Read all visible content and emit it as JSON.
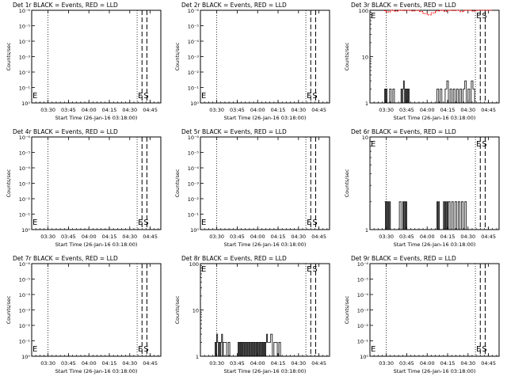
{
  "figure": {
    "time_ticks": [
      "03:30",
      "03:45",
      "04:00",
      "04:15",
      "04:30",
      "04:45"
    ],
    "xlabel": "Start Time (26-Jan-16 03:18:00)",
    "ylabel": "Counts/sec",
    "markers": {
      "E": "E",
      "S": "S"
    },
    "colors": {
      "events": "#000000",
      "lld": "#ff0000"
    }
  },
  "chart_data": [
    {
      "type": "line",
      "title": "Det 1r BLACK = Events, RED = LLD",
      "scale": "decade",
      "ytick_labels": [
        "10⁰",
        "10⁻¹",
        "10⁻²",
        "10⁻³",
        "10⁻⁴",
        "10⁻⁵",
        "10⁻⁶"
      ],
      "series": []
    },
    {
      "type": "line",
      "title": "Det 2r BLACK = Events, RED = LLD",
      "scale": "decade",
      "ytick_labels": [
        "10⁰",
        "10⁻¹",
        "10⁻²",
        "10⁻³",
        "10⁻⁴",
        "10⁻⁵",
        "10⁻⁶"
      ],
      "series": []
    },
    {
      "type": "line",
      "title": "Det 3r BLACK = Events, RED = LLD",
      "scale": "log",
      "ytick_labels": [
        "100",
        "10",
        "1"
      ],
      "series": [
        {
          "color": "#000000",
          "x": [
            3.47,
            3.48,
            3.49,
            3.5,
            3.51,
            3.52,
            3.54,
            3.56,
            3.58,
            3.6,
            3.62,
            3.64,
            3.66,
            3.68,
            3.69,
            3.7,
            3.71,
            3.72,
            3.73,
            3.74,
            3.75,
            3.76,
            3.77,
            3.78,
            3.8,
            3.82,
            3.84,
            3.86,
            3.88,
            3.9,
            3.92,
            3.94,
            3.96,
            3.98,
            4.0,
            4.02,
            4.04,
            4.06,
            4.08,
            4.1,
            4.12,
            4.14,
            4.16,
            4.18,
            4.2,
            4.22,
            4.24,
            4.26,
            4.28,
            4.3,
            4.32,
            4.34,
            4.36,
            4.38,
            4.4,
            4.42,
            4.44,
            4.46,
            4.48,
            4.5,
            4.52,
            4.54,
            4.56,
            4.58,
            4.6,
            4.62,
            4.64,
            4.66,
            4.68,
            4.7,
            4.72
          ],
          "y": [
            1,
            2,
            1,
            2,
            1,
            1,
            2,
            1,
            2,
            1,
            1,
            1,
            1,
            2,
            1,
            2,
            3,
            1,
            2,
            1,
            2,
            1,
            2,
            1,
            1,
            1,
            1,
            1,
            1,
            1,
            1,
            1,
            1,
            1,
            1,
            1,
            1,
            1,
            1,
            1,
            2,
            1,
            2,
            1,
            1,
            2,
            3,
            1,
            2,
            1,
            2,
            1,
            2,
            1,
            2,
            1,
            2,
            3,
            1,
            2,
            1,
            3,
            2,
            1,
            1,
            1,
            1,
            1,
            1,
            1,
            1
          ]
        },
        {
          "color": "#ff0000",
          "x": [
            3.47,
            3.5,
            3.55,
            3.6,
            3.65,
            3.7,
            3.75,
            3.8,
            3.85,
            3.9,
            3.95,
            4.0,
            4.05,
            4.1,
            4.15,
            4.2,
            4.25,
            4.3,
            4.35,
            4.4,
            4.45,
            4.5,
            4.55,
            4.6,
            4.65,
            4.7,
            4.75,
            4.8
          ],
          "y": [
            98,
            92,
            100,
            96,
            100,
            99,
            100,
            97,
            100,
            94,
            85,
            80,
            88,
            97,
            100,
            95,
            100,
            99,
            100,
            93,
            100,
            100,
            96,
            100,
            100,
            100,
            100,
            100
          ]
        }
      ]
    },
    {
      "type": "line",
      "title": "Det 4r BLACK = Events, RED = LLD",
      "scale": "decade",
      "ytick_labels": [
        "10⁰",
        "10⁻¹",
        "10⁻²",
        "10⁻³",
        "10⁻⁴",
        "10⁻⁵",
        "10⁻⁶"
      ],
      "series": []
    },
    {
      "type": "line",
      "title": "Det 5r BLACK = Events, RED = LLD",
      "scale": "decade",
      "ytick_labels": [
        "10⁰",
        "10⁻¹",
        "10⁻²",
        "10⁻³",
        "10⁻⁴",
        "10⁻⁵",
        "10⁻⁶"
      ],
      "series": []
    },
    {
      "type": "line",
      "title": "Det 6r BLACK = Events, RED = LLD",
      "scale": "log",
      "ytick_labels": [
        "10",
        "1"
      ],
      "series": [
        {
          "color": "#000000",
          "x": [
            3.48,
            3.49,
            3.5,
            3.51,
            3.52,
            3.53,
            3.54,
            3.55,
            3.56,
            3.58,
            3.6,
            3.62,
            3.64,
            3.66,
            3.68,
            3.7,
            3.71,
            3.72,
            3.73,
            3.74,
            3.75,
            3.76,
            3.78,
            3.8,
            3.82,
            3.84,
            3.86,
            3.88,
            3.9,
            3.92,
            3.94,
            3.96,
            3.98,
            4.0,
            4.02,
            4.04,
            4.06,
            4.08,
            4.1,
            4.12,
            4.13,
            4.14,
            4.15,
            4.16,
            4.18,
            4.2,
            4.21,
            4.22,
            4.23,
            4.24,
            4.25,
            4.26,
            4.28,
            4.3,
            4.32,
            4.34,
            4.36,
            4.38,
            4.4,
            4.42,
            4.44,
            4.46,
            4.48,
            4.5,
            4.52,
            4.54,
            4.56,
            4.58,
            4.6,
            4.62,
            4.64,
            4.66,
            4.68,
            4.7
          ],
          "y": [
            2,
            1,
            2,
            1,
            2,
            1,
            2,
            1,
            1,
            1,
            1,
            1,
            1,
            2,
            1,
            2,
            1,
            2,
            1,
            2,
            1,
            1,
            1,
            1,
            1,
            1,
            1,
            1,
            1,
            1,
            1,
            1,
            1,
            1,
            1,
            1,
            1,
            1,
            1,
            2,
            1,
            2,
            1,
            1,
            1,
            2,
            1,
            2,
            1,
            2,
            1,
            2,
            1,
            2,
            1,
            2,
            1,
            2,
            1,
            2,
            1,
            2,
            1,
            1,
            1,
            1,
            1,
            1,
            1,
            1,
            1,
            1,
            1,
            1
          ]
        }
      ]
    },
    {
      "type": "line",
      "title": "Det 7r BLACK = Events, RED = LLD",
      "scale": "decade",
      "ytick_labels": [
        "10⁰",
        "10⁻¹",
        "10⁻²",
        "10⁻³",
        "10⁻⁴",
        "10⁻⁵",
        "10⁻⁶"
      ],
      "series": []
    },
    {
      "type": "line",
      "title": "Det 8r BLACK = Events, RED = LLD",
      "scale": "log",
      "ytick_labels": [
        "100",
        "10",
        "1"
      ],
      "series": [
        {
          "color": "#000000",
          "x": [
            3.47,
            3.48,
            3.49,
            3.5,
            3.51,
            3.52,
            3.53,
            3.54,
            3.55,
            3.56,
            3.57,
            3.58,
            3.6,
            3.62,
            3.64,
            3.66,
            3.68,
            3.7,
            3.72,
            3.74,
            3.75,
            3.76,
            3.77,
            3.78,
            3.79,
            3.8,
            3.81,
            3.82,
            3.83,
            3.84,
            3.85,
            3.86,
            3.87,
            3.88,
            3.89,
            3.9,
            3.91,
            3.92,
            3.93,
            3.94,
            3.95,
            3.96,
            3.97,
            3.98,
            3.99,
            4.0,
            4.01,
            4.02,
            4.03,
            4.04,
            4.05,
            4.06,
            4.07,
            4.08,
            4.09,
            4.1,
            4.11,
            4.12,
            4.14,
            4.16,
            4.18,
            4.2,
            4.22,
            4.24,
            4.26,
            4.28,
            4.3,
            4.32,
            4.34,
            4.36,
            4.38,
            4.4,
            4.42,
            4.44,
            4.46,
            4.48,
            4.5,
            4.52
          ],
          "y": [
            1,
            2,
            1,
            3,
            2,
            1,
            2,
            1,
            2,
            3,
            1,
            2,
            2,
            1,
            2,
            1,
            1,
            1,
            1,
            1,
            1,
            2,
            1,
            2,
            1,
            2,
            1,
            2,
            1,
            2,
            1,
            2,
            1,
            2,
            1,
            2,
            1,
            2,
            1,
            2,
            1,
            2,
            1,
            2,
            1,
            2,
            1,
            2,
            1,
            2,
            1,
            2,
            1,
            2,
            1,
            2,
            3,
            2,
            2,
            3,
            1,
            2,
            2,
            1,
            2,
            1,
            1,
            1,
            1,
            1,
            1,
            1,
            1,
            1,
            1,
            1,
            1,
            1
          ]
        }
      ]
    },
    {
      "type": "line",
      "title": "Det 9r BLACK = Events, RED = LLD",
      "scale": "decade",
      "ytick_labels": [
        "10⁰",
        "10⁻¹",
        "10⁻²",
        "10⁻³",
        "10⁻⁴",
        "10⁻⁵",
        "10⁻⁶"
      ],
      "series": []
    }
  ]
}
